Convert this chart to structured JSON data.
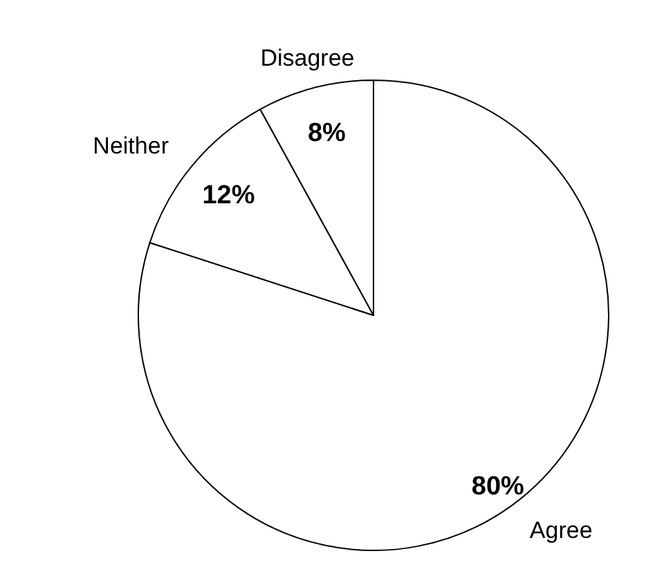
{
  "chart_data": {
    "type": "pie",
    "categories": [
      "Agree",
      "Neither",
      "Disagree"
    ],
    "values": [
      80,
      12,
      8
    ],
    "colors": [
      "#ffffff",
      "#ffffff",
      "#ffffff"
    ],
    "value_labels": [
      "80%",
      "12%",
      "8%"
    ]
  }
}
